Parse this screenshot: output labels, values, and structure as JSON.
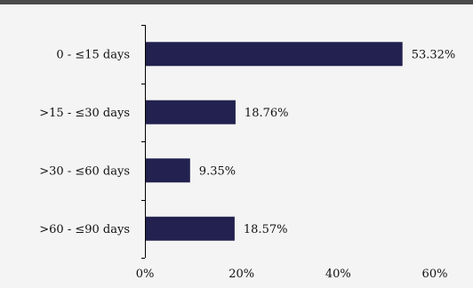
{
  "chart_data": {
    "type": "bar",
    "orientation": "horizontal",
    "title": "",
    "xlabel": "",
    "ylabel": "",
    "categories": [
      "0  - ≤15 days",
      ">15  - ≤30 days",
      ">30  - ≤60 days",
      ">60  - ≤90 days"
    ],
    "values": [
      53.32,
      18.76,
      9.35,
      18.57
    ],
    "data_labels": [
      "53.32%",
      "18.76%",
      "9.35%",
      "18.57%"
    ],
    "xlim": [
      0,
      60
    ],
    "x_ticks": [
      0,
      20,
      40,
      60
    ],
    "x_tick_labels": [
      "0%",
      "20%",
      "40%",
      "60%"
    ],
    "grid": false,
    "legend": "none",
    "bar_color": "#22214f",
    "background_color": "#f4f4f4"
  }
}
